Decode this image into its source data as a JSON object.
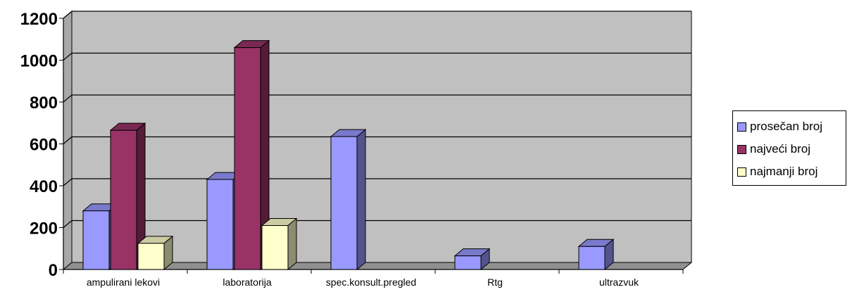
{
  "chart_data": {
    "type": "bar",
    "categories": [
      "ampulirani lekovi",
      "laboratorija",
      "spec.konsult.pregled",
      "Rtg",
      "ultrazvuk"
    ],
    "series": [
      {
        "name": "prosečan broj",
        "values": [
          280,
          430,
          635,
          65,
          110
        ],
        "color": "#9999ff"
      },
      {
        "name": "najveći broj",
        "values": [
          665,
          1060,
          null,
          null,
          null
        ],
        "color": "#993366"
      },
      {
        "name": "najmanji broj",
        "values": [
          125,
          210,
          null,
          null,
          null
        ],
        "color": "#ffffcc"
      }
    ],
    "yticks": [
      "0",
      "200",
      "400",
      "600",
      "800",
      "1000",
      "1200"
    ],
    "ylim": [
      0,
      1200
    ],
    "grid": true,
    "legend_position": "right",
    "plot_background": "#c0c0c0"
  }
}
